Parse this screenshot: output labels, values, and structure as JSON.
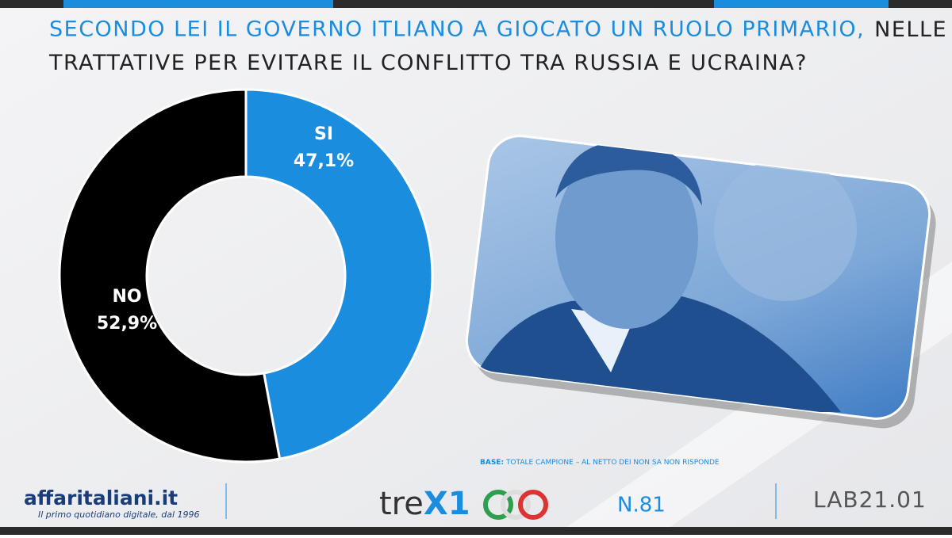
{
  "chart_data": {
    "type": "donut",
    "title": [
      "SECONDO LEI IL GOVERNO ITLIANO A GIOCATO UN RUOLO PRIMARIO,",
      "NELLE TRATTATIVE PER EVITARE IL CONFLITTO TRA RUSSIA E UCRAINA?"
    ],
    "categories": [
      "SI",
      "NO"
    ],
    "values": [
      47.1,
      52.9
    ],
    "value_labels": [
      "47,1%",
      "52,9%"
    ],
    "colors": [
      "#1b8ddf",
      "#000000"
    ]
  },
  "note": {
    "label": "BASE:",
    "text": "TOTALE CAMPIONE – AL NETTO DEI NON SA NON RISPONDE"
  },
  "footer": {
    "brand": "affaritaliani.it",
    "tagline": "Il primo quotidiano digitale, dal 1996",
    "logo": [
      "tre",
      "X1"
    ],
    "issue": "N.81",
    "lab": "LAB21.01"
  }
}
